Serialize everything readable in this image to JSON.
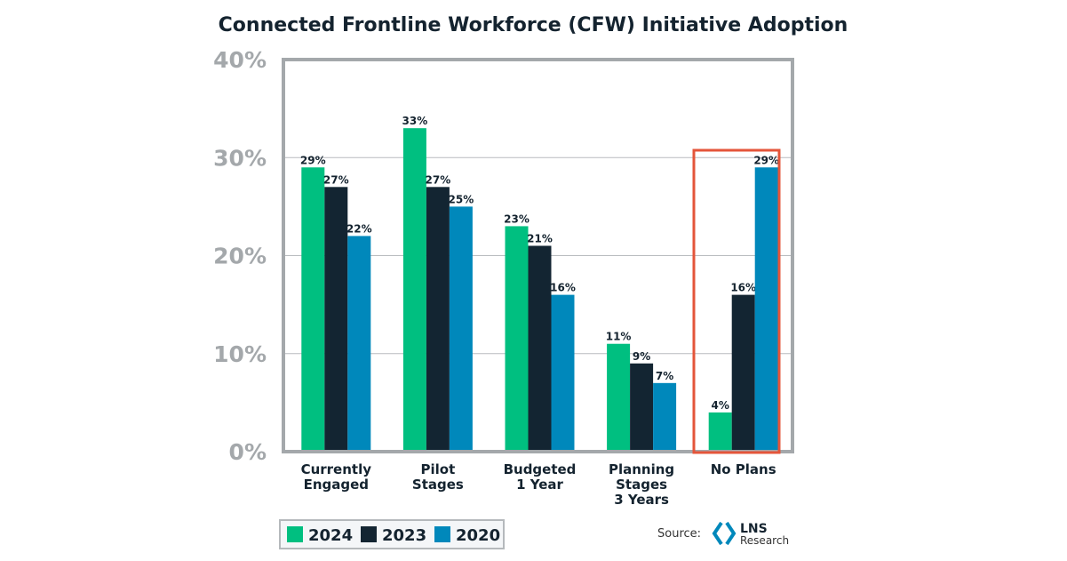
{
  "chart_data": {
    "type": "bar",
    "title": "Connected Frontline Workforce (CFW) Initiative Adoption",
    "categories": [
      [
        "Currently",
        "Engaged"
      ],
      [
        "Pilot",
        "Stages"
      ],
      [
        "Budgeted",
        "1 Year"
      ],
      [
        "Planning",
        "Stages",
        "3 Years"
      ],
      [
        "No Plans"
      ]
    ],
    "series": [
      {
        "name": "2024",
        "color": "#00bf80",
        "values": [
          29,
          33,
          23,
          11,
          4
        ]
      },
      {
        "name": "2023",
        "color": "#132532",
        "values": [
          27,
          27,
          21,
          9,
          16
        ]
      },
      {
        "name": "2020",
        "color": "#0088bb",
        "values": [
          22,
          25,
          16,
          7,
          29
        ]
      }
    ],
    "yticks": [
      "0%",
      "10%",
      "20%",
      "30%",
      "40%"
    ],
    "ylim": [
      0,
      40
    ],
    "grid": true,
    "legend": "bottom-left",
    "highlight": {
      "category": "No Plans",
      "color": "#e4553a"
    },
    "source_label": "Source:",
    "logo": {
      "line1": "LNS",
      "line2": "Research"
    }
  }
}
